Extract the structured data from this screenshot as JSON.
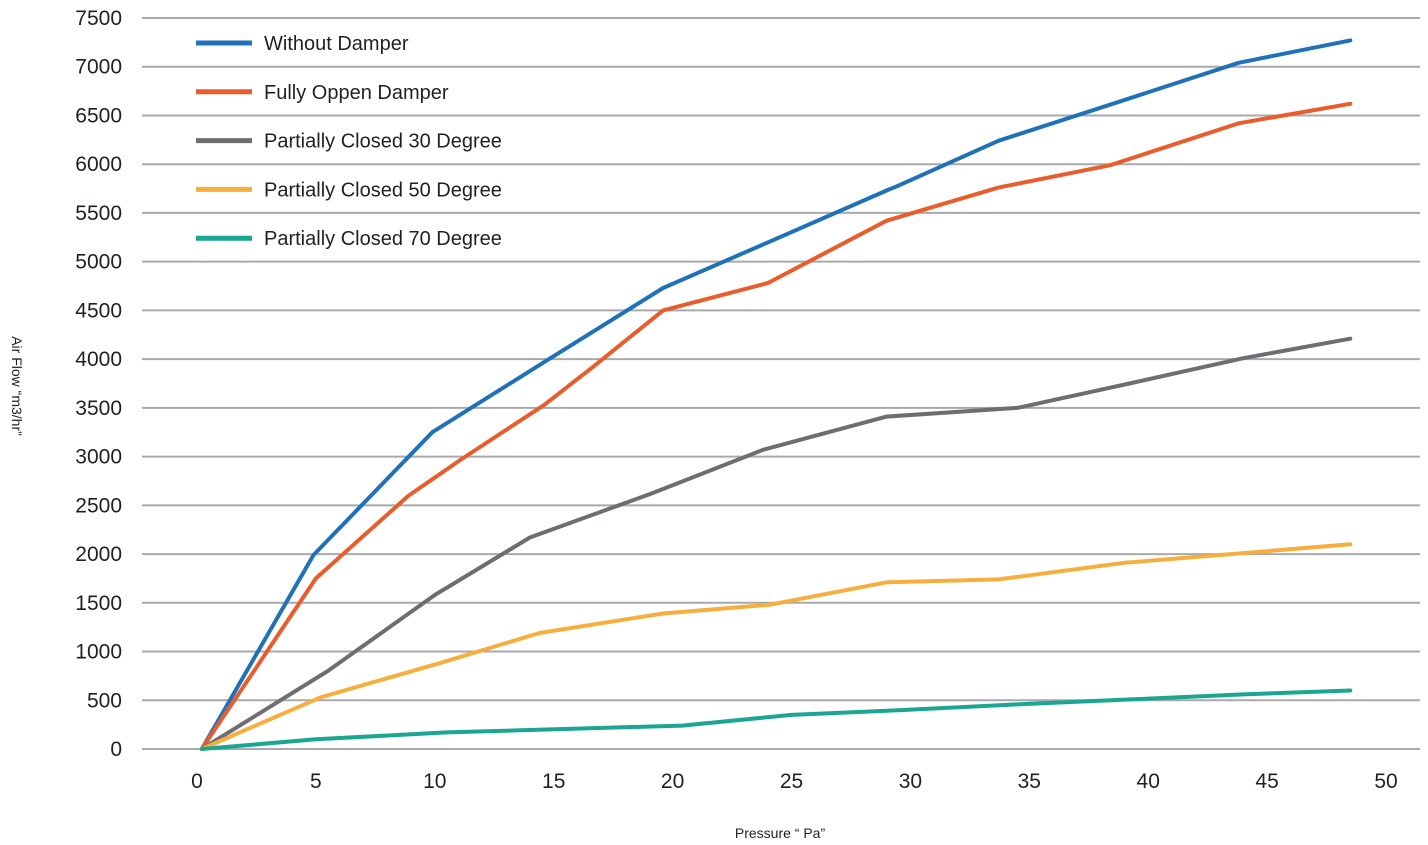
{
  "chart_data": {
    "type": "line",
    "title": "",
    "xlabel": "Pressure “ Pa”",
    "ylabel": "Air Flow  “m3/hr”",
    "xlim": [
      0,
      50
    ],
    "ylim": [
      0,
      7500
    ],
    "xticks": [
      0,
      5,
      10,
      15,
      20,
      25,
      30,
      35,
      40,
      45,
      50
    ],
    "yticks": [
      0,
      500,
      1000,
      1500,
      2000,
      2500,
      3000,
      3500,
      4000,
      4500,
      5000,
      5500,
      6000,
      6500,
      7000,
      7500
    ],
    "grid": "horizontal",
    "legend_position": "top-left",
    "series": [
      {
        "name": "Without Damper",
        "color": "#1f72b8",
        "x": [
          0.2,
          4.9,
          9.9,
          14.6,
          19.6,
          24.5,
          29.0,
          29.5,
          33.7,
          38.9,
          43.8,
          48.5
        ],
        "y": [
          0,
          1990,
          3250,
          3970,
          4730,
          5250,
          5730,
          5780,
          6240,
          6650,
          7040,
          7270
        ]
      },
      {
        "name": "Fully Oppen Damper",
        "color": "#e95c2b",
        "x": [
          0.2,
          5.0,
          8.9,
          11.1,
          14.6,
          16.6,
          19.6,
          24.0,
          29.0,
          33.7,
          38.4,
          43.8,
          48.5
        ],
        "y": [
          0,
          1750,
          2600,
          2970,
          3530,
          3910,
          4500,
          4780,
          5420,
          5760,
          5990,
          6420,
          6620
        ]
      },
      {
        "name": "Partially Closed 30 Degree",
        "color": "#6d6e71",
        "x": [
          0.2,
          5.5,
          10.0,
          14.0,
          19.1,
          23.8,
          29.0,
          34.5,
          39.4,
          44.0,
          48.5
        ],
        "y": [
          0,
          800,
          1580,
          2170,
          2620,
          3070,
          3410,
          3500,
          3760,
          4010,
          4210
        ]
      },
      {
        "name": "Partially Closed 50 Degree",
        "color": "#f6ae3d",
        "x": [
          0.2,
          5.2,
          10.2,
          14.4,
          19.6,
          24.1,
          29.0,
          33.7,
          39.0,
          44.0,
          48.5
        ],
        "y": [
          0,
          530,
          880,
          1190,
          1390,
          1480,
          1710,
          1740,
          1910,
          2010,
          2100
        ]
      },
      {
        "name": "Partially Closed 70 Degree",
        "color": "#1aa690",
        "x": [
          0.2,
          5.0,
          10.5,
          20.4,
          25.0,
          29.7,
          34.6,
          39.4,
          44.0,
          48.5
        ],
        "y": [
          0,
          100,
          170,
          240,
          350,
          400,
          460,
          510,
          560,
          600
        ]
      }
    ]
  }
}
